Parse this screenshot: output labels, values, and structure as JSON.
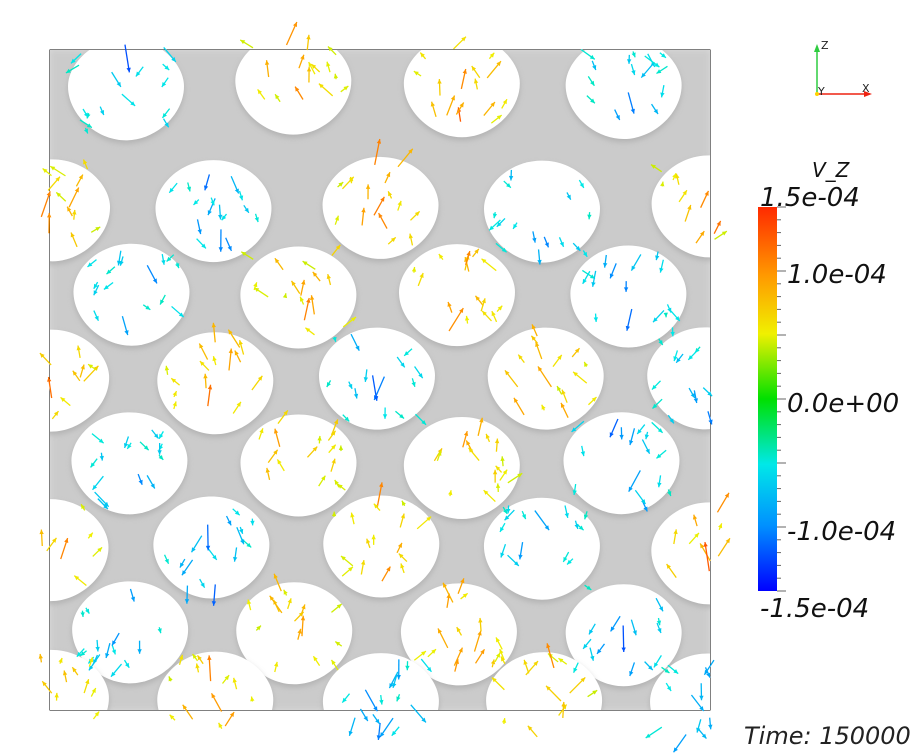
{
  "scalar_bar": {
    "title": "V_Z",
    "max_label": "1.5e-04",
    "labels": [
      "1.0e-04",
      "0.0e+00",
      "-1.0e-04"
    ],
    "min_label": "-1.5e-04",
    "min": -0.00015,
    "max": 0.00015
  },
  "time": {
    "label": "Time: 150000"
  },
  "axes": {
    "z": "Z",
    "y": "Y",
    "x": "X"
  },
  "colors": {
    "surface": "#e4e4e4",
    "surface_shade": "#9a9a9a",
    "frame": "#000000"
  }
}
